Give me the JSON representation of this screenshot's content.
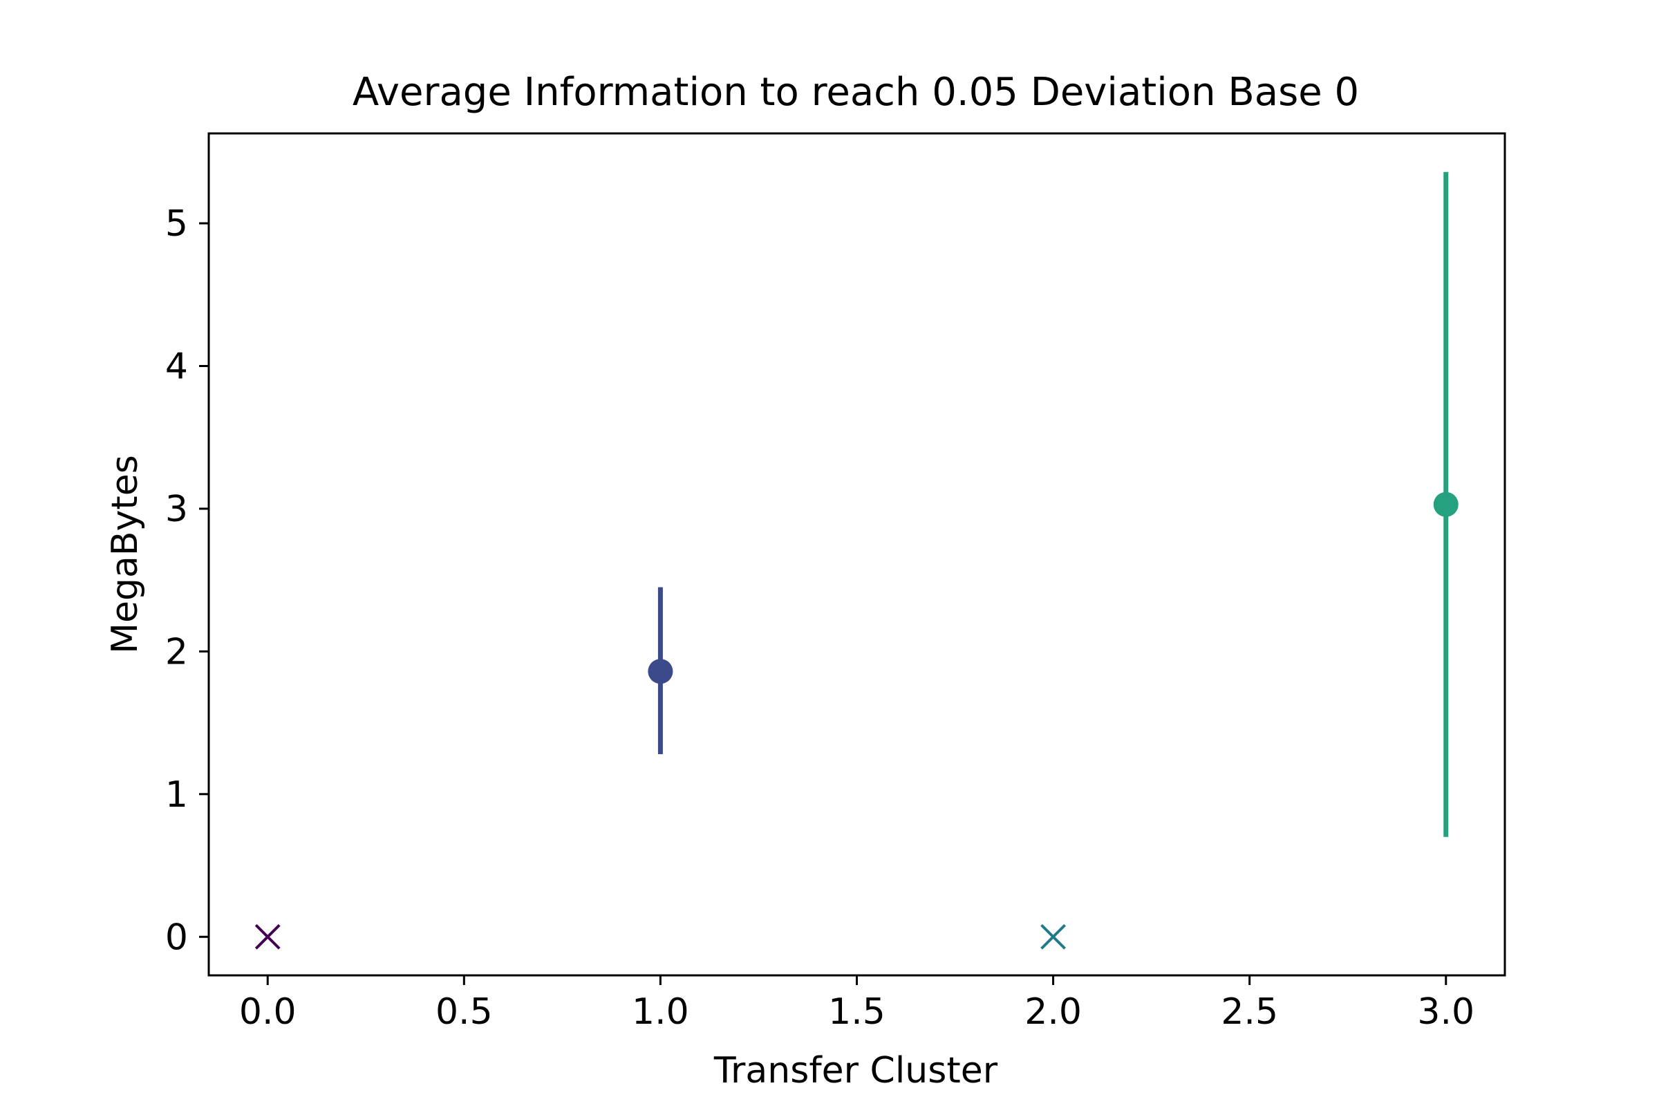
{
  "chart_data": {
    "type": "scatter",
    "title": "Average Information to reach 0.05 Deviation Base 0",
    "xlabel": "Transfer Cluster",
    "ylabel": "MegaBytes",
    "xlim": [
      -0.15,
      3.15
    ],
    "ylim": [
      -0.27,
      5.63
    ],
    "xticks": [
      0.0,
      0.5,
      1.0,
      1.5,
      2.0,
      2.5,
      3.0
    ],
    "xtick_labels": [
      "0.0",
      "0.5",
      "1.0",
      "1.5",
      "2.0",
      "2.5",
      "3.0"
    ],
    "yticks": [
      0,
      1,
      2,
      3,
      4,
      5
    ],
    "ytick_labels": [
      "0",
      "1",
      "2",
      "3",
      "4",
      "5"
    ],
    "grid": false,
    "points": [
      {
        "x": 0,
        "y": 0,
        "marker": "x",
        "color": "#440154"
      },
      {
        "x": 1,
        "y": 1.86,
        "marker": "o",
        "color": "#3b4a8a",
        "err_low": 1.28,
        "err_high": 2.45
      },
      {
        "x": 2,
        "y": 0,
        "marker": "x",
        "color": "#21798a"
      },
      {
        "x": 3,
        "y": 3.03,
        "marker": "o",
        "color": "#25a17f",
        "err_low": 0.7,
        "err_high": 5.36
      }
    ]
  }
}
